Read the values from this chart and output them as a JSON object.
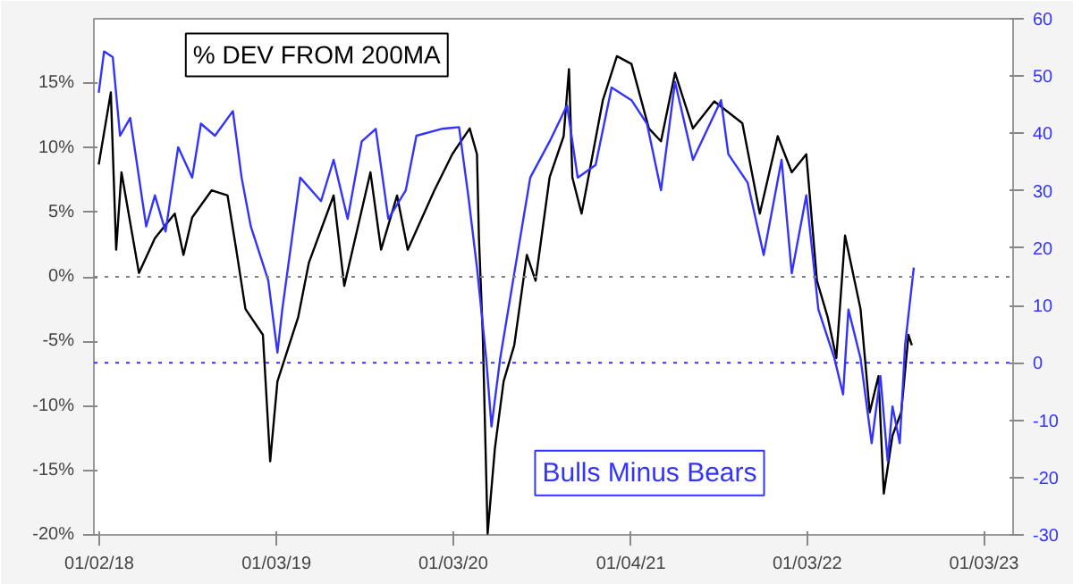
{
  "chart_data": {
    "type": "line",
    "xlim": [
      "2017-12-22",
      "2023-03-04"
    ],
    "xticks": [
      {
        "value": "2018-01-02",
        "label": "01/02/18"
      },
      {
        "value": "2019-01-03",
        "label": "01/03/19"
      },
      {
        "value": "2020-01-03",
        "label": "01/03/20"
      },
      {
        "value": "2021-01-04",
        "label": "01/04/21"
      },
      {
        "value": "2022-01-03",
        "label": "01/03/22"
      },
      {
        "value": "2023-01-03",
        "label": "01/03/23"
      }
    ],
    "ylim": [
      -20,
      20
    ],
    "yticks": [
      {
        "value": -20,
        "label": "-20%"
      },
      {
        "value": -15,
        "label": "-15%"
      },
      {
        "value": -10,
        "label": "-10%"
      },
      {
        "value": -5,
        "label": "-5%"
      },
      {
        "value": 0,
        "label": "0%"
      },
      {
        "value": 5,
        "label": "5%"
      },
      {
        "value": 10,
        "label": "10%"
      },
      {
        "value": 15,
        "label": "15%"
      }
    ],
    "y2lim": [
      -30,
      60
    ],
    "y2ticks": [
      -30,
      -20,
      -10,
      0,
      10,
      20,
      30,
      40,
      50,
      60
    ],
    "grid": false,
    "marker": "none",
    "line_style": "solid",
    "ref_lines": [
      {
        "axis": "y",
        "value": 0,
        "color": "#808080",
        "line_style": "dotted"
      },
      {
        "axis": "y2",
        "value": 0,
        "color": "#3333ff",
        "line_style": "dotted"
      }
    ],
    "series": [
      {
        "name": "% DEV FROM 200MA",
        "color": "#000000",
        "x": [
          "2018-01-01",
          "2018-01-26",
          "2018-02-06",
          "2018-02-17",
          "2018-03-25",
          "2018-04-27",
          "2018-06-07",
          "2018-06-25",
          "2018-07-13",
          "2018-08-22",
          "2018-09-24",
          "2018-10-12",
          "2018-10-31",
          "2018-12-06",
          "2018-12-21",
          "2019-01-05",
          "2019-02-17",
          "2019-03-11",
          "2019-05-01",
          "2019-05-23",
          "2019-07-16",
          "2019-08-07",
          "2019-09-09",
          "2019-10-01",
          "2019-11-25",
          "2020-01-01",
          "2020-02-06",
          "2020-02-21",
          "2020-02-25",
          "2020-03-04",
          "2020-03-14",
          "2020-03-29",
          "2020-04-16",
          "2020-05-08",
          "2020-06-03",
          "2020-06-21",
          "2020-07-20",
          "2020-08-18",
          "2020-08-29",
          "2020-09-05",
          "2020-09-24",
          "2020-11-07",
          "2020-12-06",
          "2021-01-05",
          "2021-02-10",
          "2021-03-07",
          "2021-04-05",
          "2021-05-12",
          "2021-06-25",
          "2021-08-22",
          "2021-09-27",
          "2021-11-03",
          "2021-12-02",
          "2022-01-01",
          "2022-01-23",
          "2022-02-14",
          "2022-03-04",
          "2022-03-22",
          "2022-04-23",
          "2022-05-12",
          "2022-05-30",
          "2022-06-10",
          "2022-06-28",
          "2022-07-16",
          "2022-07-31",
          "2022-08-07"
        ],
        "values": [
          8.7,
          14.3,
          2.1,
          8.1,
          0.3,
          3.0,
          4.9,
          1.7,
          4.6,
          6.7,
          6.3,
          2.1,
          -2.5,
          -4.5,
          -14.3,
          -8.1,
          -3.1,
          1.1,
          6.3,
          -0.7,
          8.1,
          2.1,
          6.3,
          2.1,
          6.7,
          9.5,
          11.5,
          9.5,
          3.1,
          -4.5,
          -19.9,
          -13.3,
          -8.1,
          -5.3,
          1.7,
          -0.3,
          7.7,
          10.9,
          16.1,
          7.7,
          4.9,
          13.7,
          17.1,
          16.5,
          11.5,
          10.5,
          15.8,
          11.5,
          13.6,
          11.9,
          4.9,
          10.9,
          8.1,
          9.5,
          -0.3,
          -3.1,
          -6.3,
          3.2,
          -2.5,
          -10.5,
          -7.7,
          -16.8,
          -12.3,
          -10.5,
          -4.5,
          -5.3
        ]
      },
      {
        "name": "Bulls Minus Bears",
        "color": "#3333ff",
        "axis": "y2",
        "x": [
          "2018-01-01",
          "2018-01-12",
          "2018-01-30",
          "2018-02-14",
          "2018-03-07",
          "2018-04-09",
          "2018-04-27",
          "2018-05-19",
          "2018-06-14",
          "2018-07-13",
          "2018-07-31",
          "2018-08-29",
          "2018-10-05",
          "2018-10-23",
          "2018-11-11",
          "2018-12-17",
          "2019-01-05",
          "2019-01-15",
          "2019-02-21",
          "2019-04-05",
          "2019-05-01",
          "2019-05-30",
          "2019-06-28",
          "2019-07-27",
          "2019-08-22",
          "2019-09-27",
          "2019-10-19",
          "2019-12-10",
          "2020-01-15",
          "2020-02-03",
          "2020-02-21",
          "2020-03-11",
          "2020-03-22",
          "2020-04-09",
          "2020-05-08",
          "2020-06-10",
          "2020-07-20",
          "2020-08-25",
          "2020-09-16",
          "2020-10-23",
          "2020-11-25",
          "2021-01-05",
          "2021-02-06",
          "2021-03-07",
          "2021-04-05",
          "2021-05-12",
          "2021-07-09",
          "2021-07-24",
          "2021-09-02",
          "2021-10-05",
          "2021-11-11",
          "2021-12-02",
          "2022-01-01",
          "2022-01-26",
          "2022-02-28",
          "2022-03-18",
          "2022-03-29",
          "2022-04-23",
          "2022-05-16",
          "2022-06-03",
          "2022-06-18",
          "2022-06-28",
          "2022-07-13",
          "2022-07-24",
          "2022-08-11"
        ],
        "values": [
          47.1,
          54.3,
          53.3,
          39.6,
          42.7,
          23.8,
          29.2,
          22.9,
          37.6,
          32.3,
          41.7,
          39.6,
          43.9,
          32.3,
          23.8,
          14.4,
          1.8,
          9.3,
          32.3,
          28.2,
          35.4,
          25.1,
          38.6,
          40.8,
          25.1,
          30.1,
          39.6,
          40.8,
          41.1,
          29.2,
          16.6,
          0.8,
          -11.1,
          0.8,
          15.6,
          32.3,
          38.6,
          44.9,
          32.3,
          34.5,
          48.0,
          45.8,
          41.7,
          30.1,
          49.0,
          35.4,
          45.8,
          36.4,
          31.4,
          18.8,
          35.4,
          15.6,
          29.2,
          9.3,
          0.8,
          -5.5,
          9.3,
          0.8,
          -14.0,
          -2.3,
          -17.1,
          -7.6,
          -14.0,
          3.1,
          16.6
        ]
      }
    ]
  }
}
